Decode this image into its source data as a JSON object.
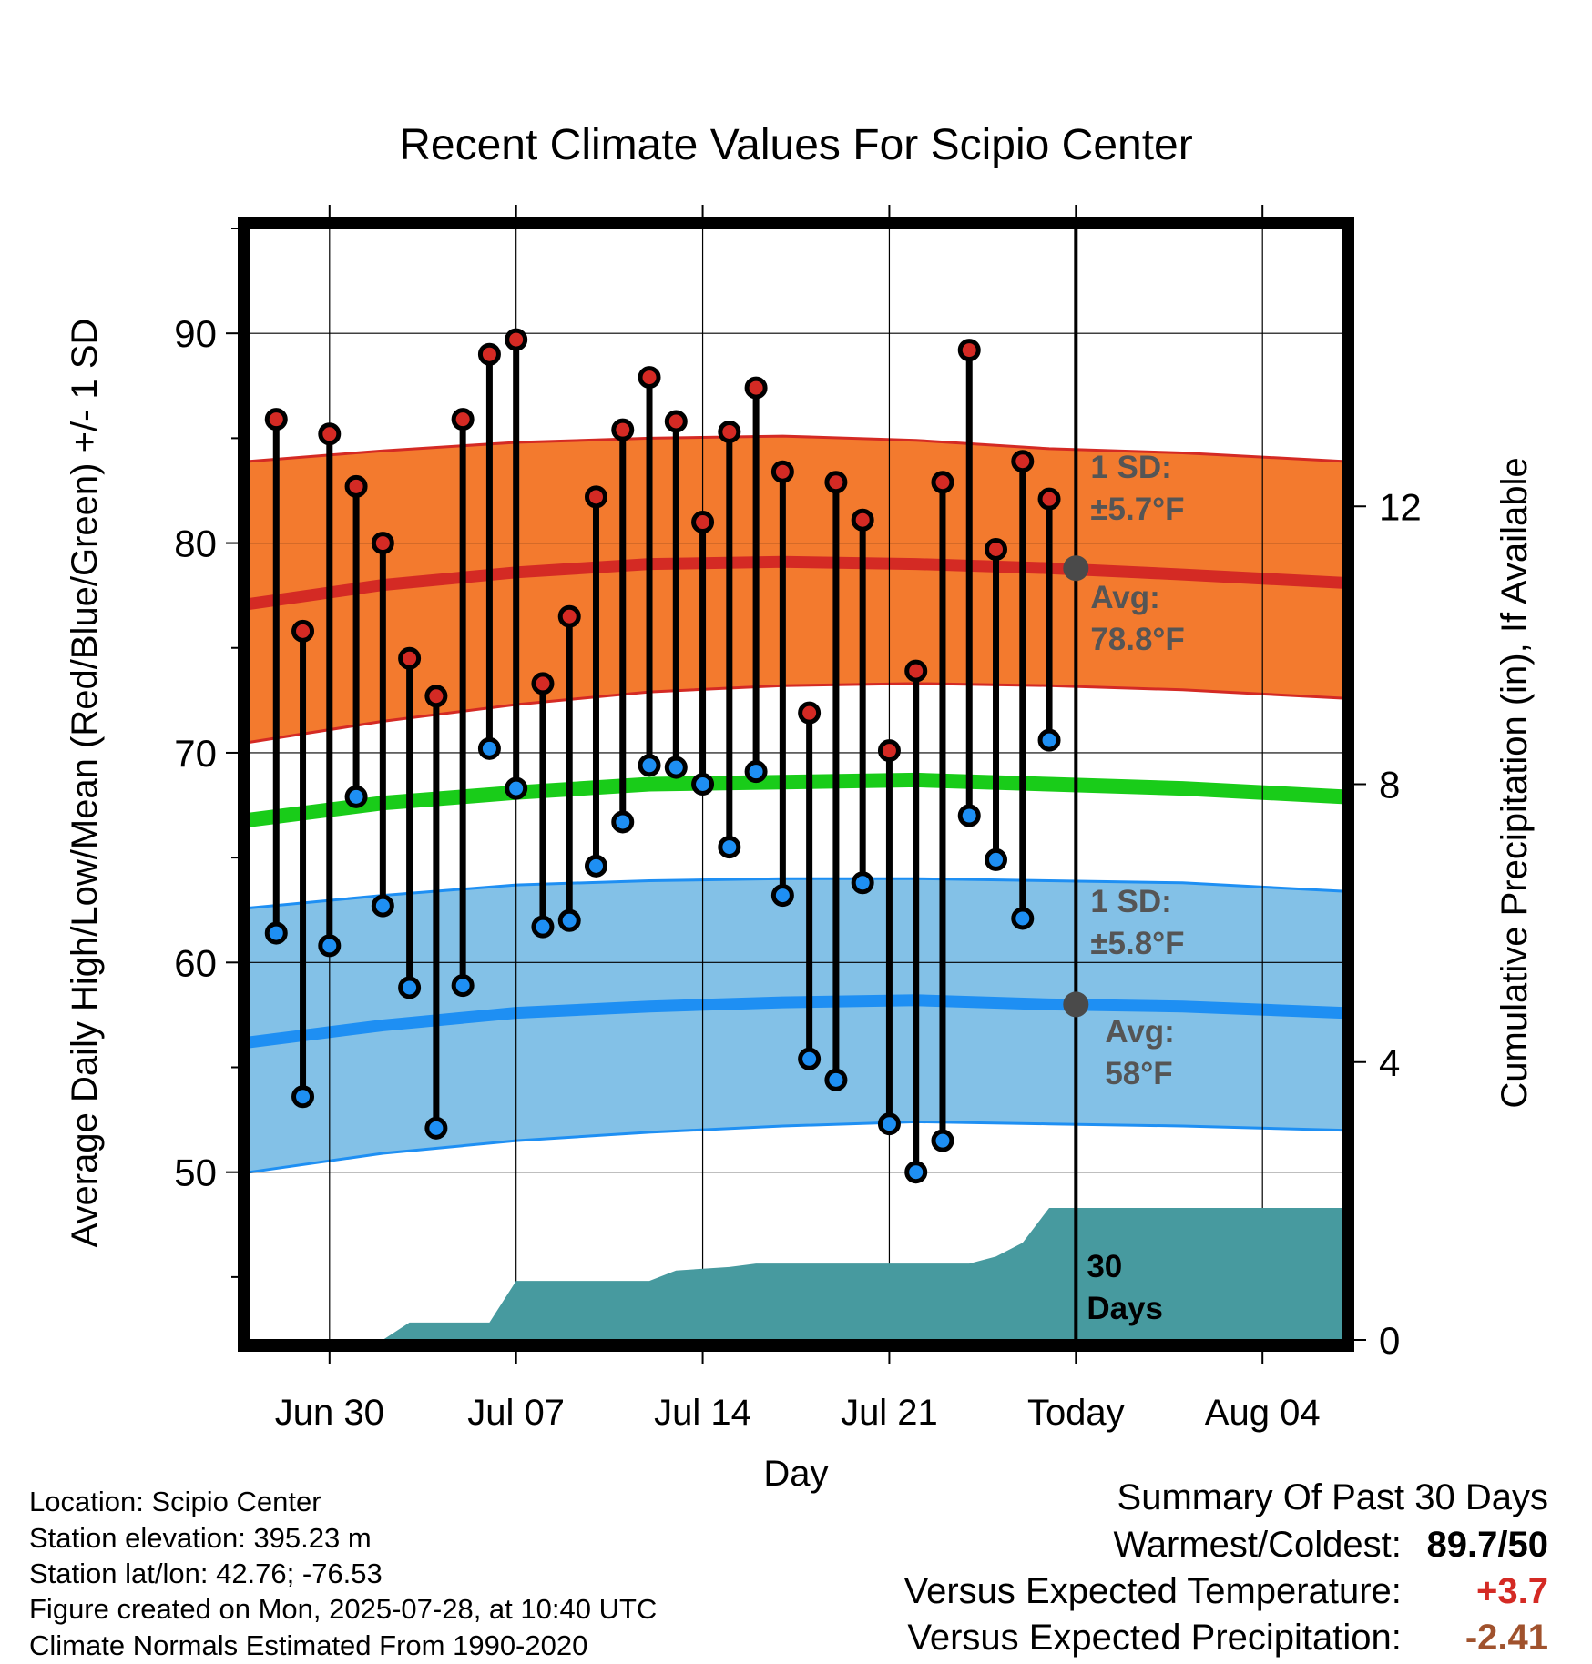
{
  "chart_data": {
    "type": "line",
    "title": "Recent Climate Values For Scipio Center",
    "xlabel": "Day",
    "ylabel": "Average Daily High/Low/Mean (Red/Blue/Green) +/- 1 SD",
    "y2label": "Cumulative Precipitation (in), If Available",
    "ylim": [
      42,
      95
    ],
    "y2lim": [
      0,
      16
    ],
    "xlim": [
      "2025-06-27",
      "2025-08-07"
    ],
    "yticks": [
      50,
      60,
      70,
      80,
      90
    ],
    "y2ticks": [
      0,
      4,
      8,
      12
    ],
    "xticks": [
      {
        "date": "2025-06-30",
        "label": "Jun 30"
      },
      {
        "date": "2025-07-07",
        "label": "Jul 07"
      },
      {
        "date": "2025-07-14",
        "label": "Jul 14"
      },
      {
        "date": "2025-07-21",
        "label": "Jul 21"
      },
      {
        "date": "2025-07-28",
        "label": "Today"
      },
      {
        "date": "2025-08-04",
        "label": "Aug 04"
      }
    ],
    "today": "2025-07-28",
    "grid": true,
    "colors": {
      "high_band": "#f37a2e",
      "high_avg": "#d42a24",
      "low_band": "#83c1e7",
      "low_avg": "#1e8ff3",
      "mean": "#19cc19",
      "precip": "#479a9f",
      "high_dot": "#d42a24",
      "low_dot": "#1e8ff3",
      "today_dot": "#4a4a4a",
      "annotation": "#555555"
    },
    "normals_dates": [
      "2025-06-27",
      "2025-07-02",
      "2025-07-07",
      "2025-07-12",
      "2025-07-17",
      "2025-07-22",
      "2025-07-27",
      "2025-08-01",
      "2025-08-07"
    ],
    "normal_high": [
      77.1,
      78.0,
      78.6,
      79.0,
      79.1,
      79.0,
      78.8,
      78.5,
      78.1
    ],
    "high_upper": [
      83.9,
      84.4,
      84.8,
      85.0,
      85.1,
      84.9,
      84.5,
      84.3,
      83.9
    ],
    "high_lower": [
      70.5,
      71.5,
      72.3,
      72.9,
      73.2,
      73.3,
      73.2,
      73.0,
      72.6
    ],
    "normal_mean": [
      66.8,
      67.6,
      68.1,
      68.5,
      68.6,
      68.7,
      68.5,
      68.3,
      67.9
    ],
    "normal_low": [
      56.2,
      57.0,
      57.6,
      57.9,
      58.1,
      58.2,
      58.0,
      57.9,
      57.6
    ],
    "low_upper": [
      62.6,
      63.2,
      63.7,
      63.9,
      64.0,
      64.0,
      63.9,
      63.8,
      63.4
    ],
    "low_lower": [
      50.0,
      50.9,
      51.5,
      51.9,
      52.2,
      52.4,
      52.3,
      52.2,
      52.0
    ],
    "highs": [
      {
        "date": "2025-06-28",
        "value": 85.9
      },
      {
        "date": "2025-06-29",
        "value": 75.8
      },
      {
        "date": "2025-06-30",
        "value": 85.2
      },
      {
        "date": "2025-07-01",
        "value": 82.7
      },
      {
        "date": "2025-07-02",
        "value": 80.0
      },
      {
        "date": "2025-07-03",
        "value": 74.5
      },
      {
        "date": "2025-07-04",
        "value": 72.7
      },
      {
        "date": "2025-07-05",
        "value": 85.9
      },
      {
        "date": "2025-07-06",
        "value": 89.0
      },
      {
        "date": "2025-07-07",
        "value": 89.7
      },
      {
        "date": "2025-07-08",
        "value": 73.3
      },
      {
        "date": "2025-07-09",
        "value": 76.5
      },
      {
        "date": "2025-07-10",
        "value": 82.2
      },
      {
        "date": "2025-07-11",
        "value": 85.4
      },
      {
        "date": "2025-07-12",
        "value": 87.9
      },
      {
        "date": "2025-07-13",
        "value": 85.8
      },
      {
        "date": "2025-07-14",
        "value": 81.0
      },
      {
        "date": "2025-07-15",
        "value": 85.3
      },
      {
        "date": "2025-07-16",
        "value": 87.4
      },
      {
        "date": "2025-07-17",
        "value": 83.4
      },
      {
        "date": "2025-07-18",
        "value": 71.9
      },
      {
        "date": "2025-07-19",
        "value": 82.9
      },
      {
        "date": "2025-07-20",
        "value": 81.1
      },
      {
        "date": "2025-07-21",
        "value": 70.1
      },
      {
        "date": "2025-07-22",
        "value": 73.9
      },
      {
        "date": "2025-07-23",
        "value": 82.9
      },
      {
        "date": "2025-07-24",
        "value": 89.2
      },
      {
        "date": "2025-07-25",
        "value": 79.7
      },
      {
        "date": "2025-07-26",
        "value": 83.9
      },
      {
        "date": "2025-07-27",
        "value": 82.1
      }
    ],
    "lows": [
      {
        "date": "2025-06-28",
        "value": 61.4
      },
      {
        "date": "2025-06-29",
        "value": 53.6
      },
      {
        "date": "2025-06-30",
        "value": 60.8
      },
      {
        "date": "2025-07-01",
        "value": 67.9
      },
      {
        "date": "2025-07-02",
        "value": 62.7
      },
      {
        "date": "2025-07-03",
        "value": 58.8
      },
      {
        "date": "2025-07-04",
        "value": 52.1
      },
      {
        "date": "2025-07-05",
        "value": 58.9
      },
      {
        "date": "2025-07-06",
        "value": 70.2
      },
      {
        "date": "2025-07-07",
        "value": 68.3
      },
      {
        "date": "2025-07-08",
        "value": 61.7
      },
      {
        "date": "2025-07-09",
        "value": 62.0
      },
      {
        "date": "2025-07-10",
        "value": 64.6
      },
      {
        "date": "2025-07-11",
        "value": 66.7
      },
      {
        "date": "2025-07-12",
        "value": 69.4
      },
      {
        "date": "2025-07-13",
        "value": 69.3
      },
      {
        "date": "2025-07-14",
        "value": 68.5
      },
      {
        "date": "2025-07-15",
        "value": 65.5
      },
      {
        "date": "2025-07-16",
        "value": 69.1
      },
      {
        "date": "2025-07-17",
        "value": 63.2
      },
      {
        "date": "2025-07-18",
        "value": 55.4
      },
      {
        "date": "2025-07-19",
        "value": 54.4
      },
      {
        "date": "2025-07-20",
        "value": 63.8
      },
      {
        "date": "2025-07-21",
        "value": 52.3
      },
      {
        "date": "2025-07-22",
        "value": 50.0
      },
      {
        "date": "2025-07-23",
        "value": 51.5
      },
      {
        "date": "2025-07-24",
        "value": 67.0
      },
      {
        "date": "2025-07-25",
        "value": 64.9
      },
      {
        "date": "2025-07-26",
        "value": 62.1
      },
      {
        "date": "2025-07-27",
        "value": 70.6
      }
    ],
    "precip_cumulative": [
      {
        "date": "2025-06-27",
        "value": 0.0
      },
      {
        "date": "2025-07-02",
        "value": 0.0
      },
      {
        "date": "2025-07-03",
        "value": 0.25
      },
      {
        "date": "2025-07-06",
        "value": 0.25
      },
      {
        "date": "2025-07-07",
        "value": 0.85
      },
      {
        "date": "2025-07-12",
        "value": 0.85
      },
      {
        "date": "2025-07-13",
        "value": 1.0
      },
      {
        "date": "2025-07-15",
        "value": 1.05
      },
      {
        "date": "2025-07-16",
        "value": 1.1
      },
      {
        "date": "2025-07-24",
        "value": 1.1
      },
      {
        "date": "2025-07-25",
        "value": 1.2
      },
      {
        "date": "2025-07-26",
        "value": 1.4
      },
      {
        "date": "2025-07-27",
        "value": 1.9
      },
      {
        "date": "2025-08-07",
        "value": 1.9
      }
    ],
    "annotations": {
      "high_sd_label": "1 SD:",
      "high_sd_value": "±5.7°F",
      "high_avg_label": "Avg:",
      "high_avg_value": "78.8°F",
      "high_avg_today": 78.8,
      "low_sd_label": "1 SD:",
      "low_sd_value": "±5.8°F",
      "low_avg_label": "Avg:",
      "low_avg_value": "58°F",
      "low_avg_today": 58.0,
      "days_label_1": "30",
      "days_label_2": "Days"
    }
  },
  "info": {
    "location": "Location: Scipio Center",
    "elevation": "Station elevation: 395.23 m",
    "latlon": "Station lat/lon: 42.76; -76.53",
    "created": "Figure created on Mon, 2025-07-28, at 10:40 UTC",
    "normals": "Climate Normals Estimated From 1990-2020"
  },
  "summary": {
    "title": "Summary Of Past 30 Days",
    "warmest_label": "Warmest/Coldest:",
    "warmest_value": "89.7/50",
    "temp_label": "Versus Expected Temperature:",
    "temp_value": "+3.7",
    "temp_color": "#d42a24",
    "precip_label": "Versus Expected Precipitation:",
    "precip_value": "-2.41",
    "precip_color": "#a0522d"
  }
}
